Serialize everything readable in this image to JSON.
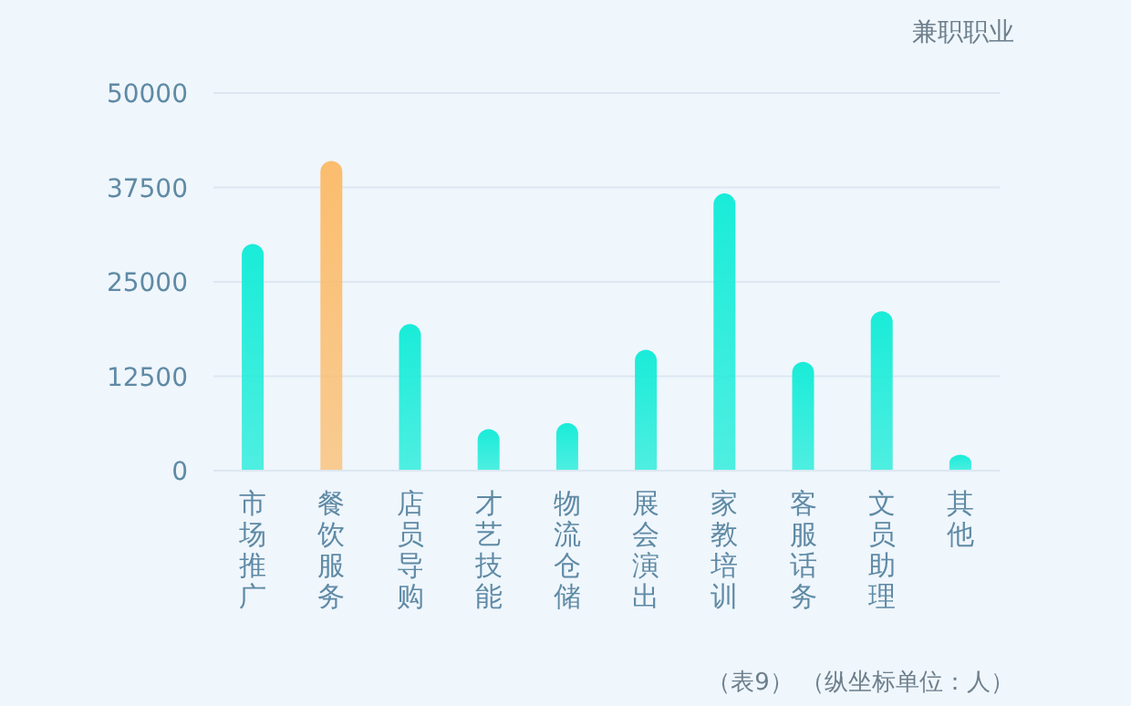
{
  "chart_data": {
    "type": "bar",
    "title": "兼职职业",
    "categories": [
      "市场推广",
      "餐饮服务",
      "店员导购",
      "才艺技能",
      "物流仓储",
      "展会演出",
      "家教培训",
      "客服话务",
      "文员助理",
      "其他"
    ],
    "values": [
      30000,
      41000,
      19400,
      5500,
      6300,
      16000,
      36700,
      14400,
      21100,
      2100
    ],
    "colors": [
      "#19ecd8",
      "#fbbd6e",
      "#19ecd8",
      "#19ecd8",
      "#19ecd8",
      "#19ecd8",
      "#19ecd8",
      "#19ecd8",
      "#19ecd8",
      "#19ecd8"
    ],
    "ylim": [
      0,
      50000
    ],
    "yticks": [
      0,
      12500,
      25000,
      37500,
      50000
    ],
    "grid": "y",
    "annotations": [
      "（表9）  （纵坐标单位：人）"
    ]
  }
}
